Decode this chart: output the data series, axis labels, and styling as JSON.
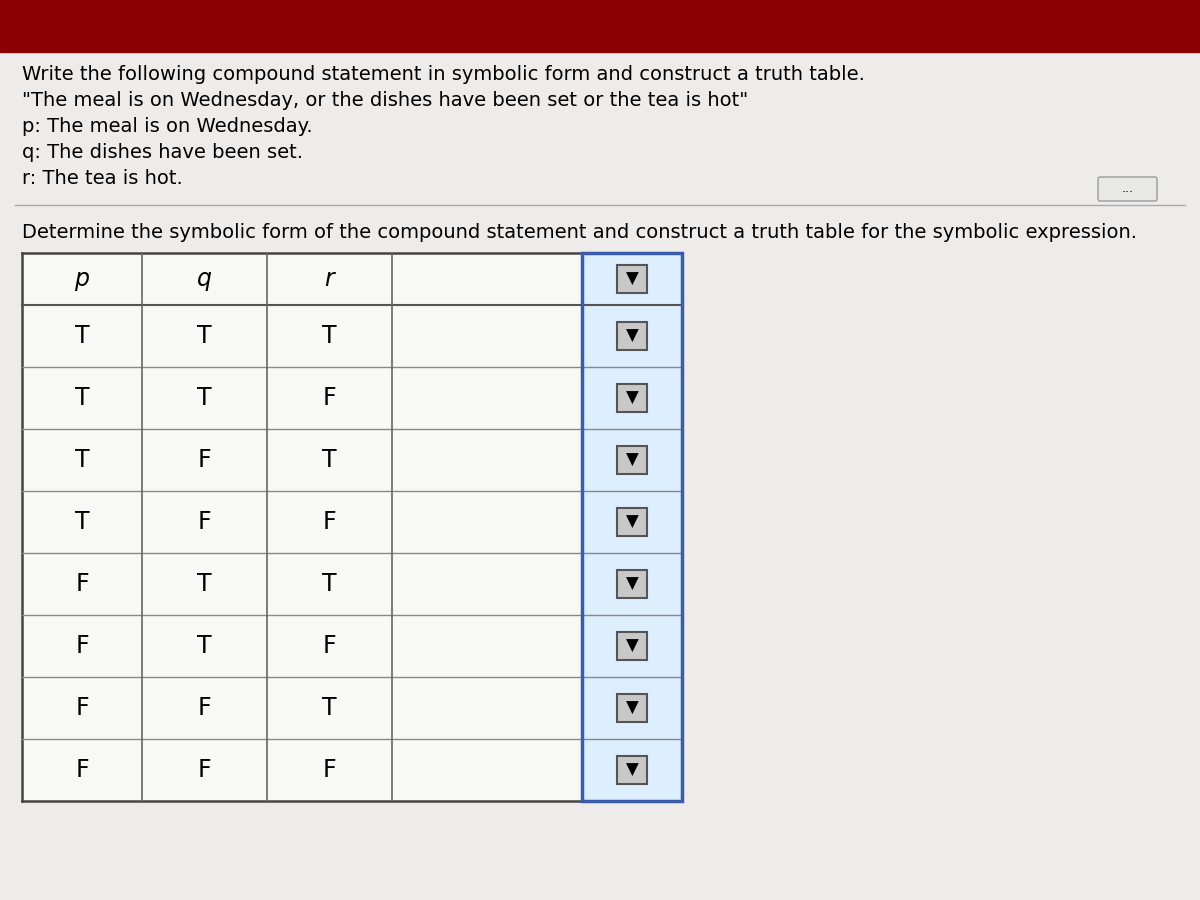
{
  "header_color": "#8B0000",
  "bg_color": "#E0E0DC",
  "content_color": "#EDECEA",
  "title_text": "Write the following compound statement in symbolic form and construct a truth table.",
  "quote_text": "\"The meal is on Wednesday, or the dishes have been set or the tea is hot\"",
  "p_text": "p: The meal is on Wednesday.",
  "q_text": "q: The dishes have been set.",
  "r_text": "r: The tea is hot.",
  "subtitle_text": "Determine the symbolic form of the compound statement and construct a truth table for the symbolic expression.",
  "rows": [
    [
      "T",
      "T",
      "T"
    ],
    [
      "T",
      "T",
      "F"
    ],
    [
      "T",
      "F",
      "T"
    ],
    [
      "T",
      "F",
      "F"
    ],
    [
      "F",
      "T",
      "T"
    ],
    [
      "F",
      "T",
      "F"
    ],
    [
      "F",
      "F",
      "T"
    ],
    [
      "F",
      "F",
      "F"
    ]
  ],
  "blue_border_color": "#3A5DAA",
  "dropdown_col_bg": "#DDEEFF",
  "dots_button_text": "...",
  "font_size_title": 14,
  "font_size_table": 17
}
